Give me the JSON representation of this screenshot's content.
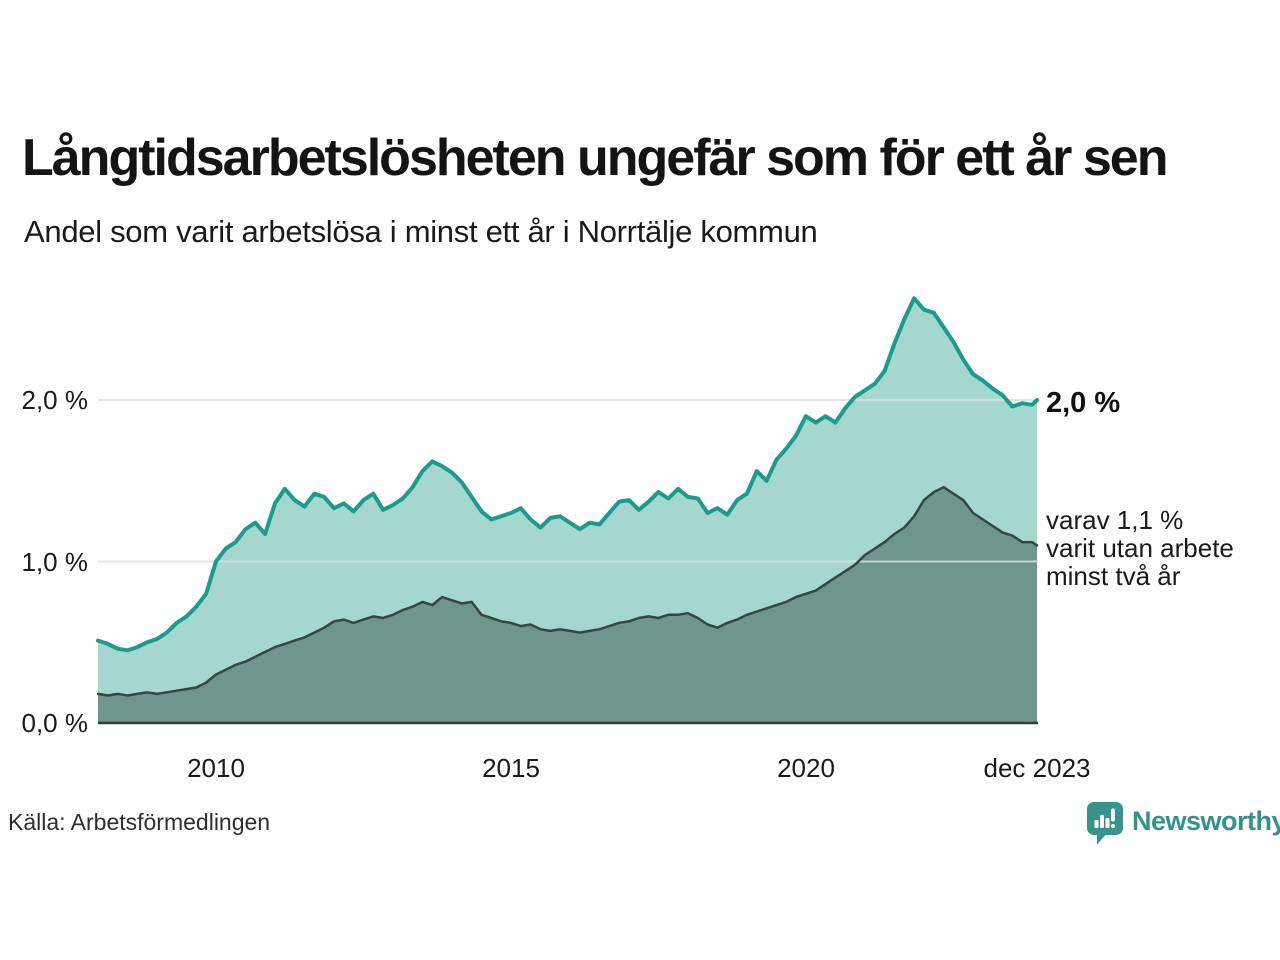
{
  "header": {
    "title": "Långtidsarbetslösheten ungefär som för ett år sen",
    "subtitle": "Andel som varit arbetslösa i minst ett år i Norrtälje kommun"
  },
  "chart_data": {
    "type": "area",
    "title": "Långtidsarbetslösheten ungefär som för ett år sen",
    "subtitle": "Andel som varit arbetslösa i minst ett år i Norrtälje kommun",
    "unit": "%",
    "xlim": [
      2008,
      2023.917
    ],
    "ylim": [
      0,
      2.8
    ],
    "grid": "horizontal",
    "y_ticks": [
      {
        "label": "2,0 %",
        "value": 2.0
      },
      {
        "label": "1,0 %",
        "value": 1.0
      },
      {
        "label": "0,0 %",
        "value": 0.0
      }
    ],
    "x_ticks": [
      {
        "label": "2010",
        "year": 2010
      },
      {
        "label": "2015",
        "year": 2015
      },
      {
        "label": "2020",
        "year": 2020
      },
      {
        "label": "dec 2023",
        "year": 2023.917
      }
    ],
    "x": [
      2008.0,
      2008.167,
      2008.333,
      2008.5,
      2008.667,
      2008.833,
      2009.0,
      2009.167,
      2009.333,
      2009.5,
      2009.667,
      2009.833,
      2010.0,
      2010.167,
      2010.333,
      2010.5,
      2010.667,
      2010.833,
      2011.0,
      2011.167,
      2011.333,
      2011.5,
      2011.667,
      2011.833,
      2012.0,
      2012.167,
      2012.333,
      2012.5,
      2012.667,
      2012.833,
      2013.0,
      2013.167,
      2013.333,
      2013.5,
      2013.667,
      2013.833,
      2014.0,
      2014.167,
      2014.333,
      2014.5,
      2014.667,
      2014.833,
      2015.0,
      2015.167,
      2015.333,
      2015.5,
      2015.667,
      2015.833,
      2016.0,
      2016.167,
      2016.333,
      2016.5,
      2016.667,
      2016.833,
      2017.0,
      2017.167,
      2017.333,
      2017.5,
      2017.667,
      2017.833,
      2018.0,
      2018.167,
      2018.333,
      2018.5,
      2018.667,
      2018.833,
      2019.0,
      2019.167,
      2019.333,
      2019.5,
      2019.667,
      2019.833,
      2020.0,
      2020.167,
      2020.333,
      2020.5,
      2020.667,
      2020.833,
      2021.0,
      2021.167,
      2021.333,
      2021.5,
      2021.667,
      2021.833,
      2022.0,
      2022.167,
      2022.333,
      2022.5,
      2022.667,
      2022.833,
      2023.0,
      2023.167,
      2023.333,
      2023.5,
      2023.667,
      2023.833,
      2023.917
    ],
    "series": [
      {
        "name": "Andel som varit arbetslösa minst ett år",
        "line_color": "#1a9c8d",
        "fill_color": "#a5d6cf",
        "line_width": 4,
        "end_label": "2,0 %",
        "values": [
          0.51,
          0.49,
          0.46,
          0.45,
          0.47,
          0.5,
          0.52,
          0.56,
          0.62,
          0.66,
          0.72,
          0.8,
          1.0,
          1.08,
          1.12,
          1.2,
          1.24,
          1.17,
          1.36,
          1.45,
          1.38,
          1.34,
          1.42,
          1.4,
          1.33,
          1.36,
          1.31,
          1.38,
          1.42,
          1.32,
          1.35,
          1.39,
          1.46,
          1.56,
          1.62,
          1.59,
          1.55,
          1.49,
          1.4,
          1.31,
          1.26,
          1.28,
          1.3,
          1.33,
          1.26,
          1.21,
          1.27,
          1.28,
          1.24,
          1.2,
          1.24,
          1.23,
          1.3,
          1.37,
          1.38,
          1.32,
          1.37,
          1.43,
          1.39,
          1.45,
          1.4,
          1.39,
          1.3,
          1.33,
          1.29,
          1.38,
          1.42,
          1.56,
          1.5,
          1.63,
          1.7,
          1.78,
          1.9,
          1.86,
          1.9,
          1.86,
          1.95,
          2.02,
          2.06,
          2.1,
          2.18,
          2.35,
          2.5,
          2.63,
          2.56,
          2.54,
          2.45,
          2.36,
          2.25,
          2.16,
          2.12,
          2.07,
          2.03,
          1.96,
          1.98,
          1.97,
          2.0
        ]
      },
      {
        "name": "varav utan arbete minst två år",
        "line_color": "#344743",
        "fill_color": "#6f958f",
        "line_width": 2.5,
        "end_label": "varav 1,1 % varit utan arbete minst två år",
        "values": [
          0.18,
          0.17,
          0.18,
          0.17,
          0.18,
          0.19,
          0.18,
          0.19,
          0.2,
          0.21,
          0.22,
          0.25,
          0.3,
          0.33,
          0.36,
          0.38,
          0.41,
          0.44,
          0.47,
          0.49,
          0.51,
          0.53,
          0.56,
          0.59,
          0.63,
          0.64,
          0.62,
          0.64,
          0.66,
          0.65,
          0.67,
          0.7,
          0.72,
          0.75,
          0.73,
          0.78,
          0.76,
          0.74,
          0.75,
          0.67,
          0.65,
          0.63,
          0.62,
          0.6,
          0.61,
          0.58,
          0.57,
          0.58,
          0.57,
          0.56,
          0.57,
          0.58,
          0.6,
          0.62,
          0.63,
          0.65,
          0.66,
          0.65,
          0.67,
          0.67,
          0.68,
          0.65,
          0.61,
          0.59,
          0.62,
          0.64,
          0.67,
          0.69,
          0.71,
          0.73,
          0.75,
          0.78,
          0.8,
          0.82,
          0.86,
          0.9,
          0.94,
          0.98,
          1.04,
          1.08,
          1.12,
          1.17,
          1.21,
          1.28,
          1.38,
          1.43,
          1.46,
          1.42,
          1.38,
          1.3,
          1.26,
          1.22,
          1.18,
          1.16,
          1.12,
          1.12,
          1.1
        ]
      }
    ],
    "annotations": {
      "end_value": "2,0 %",
      "note_lines": [
        "varav 1,1 %",
        "varit utan arbete",
        "minst två år"
      ]
    },
    "gridline_color": "#dfdfe3",
    "baseline_color": "#3a3a3a"
  },
  "footer": {
    "source": "Källa: Arbetsförmedlingen",
    "brand": "Newsworthy",
    "brand_color": "#32938a"
  }
}
